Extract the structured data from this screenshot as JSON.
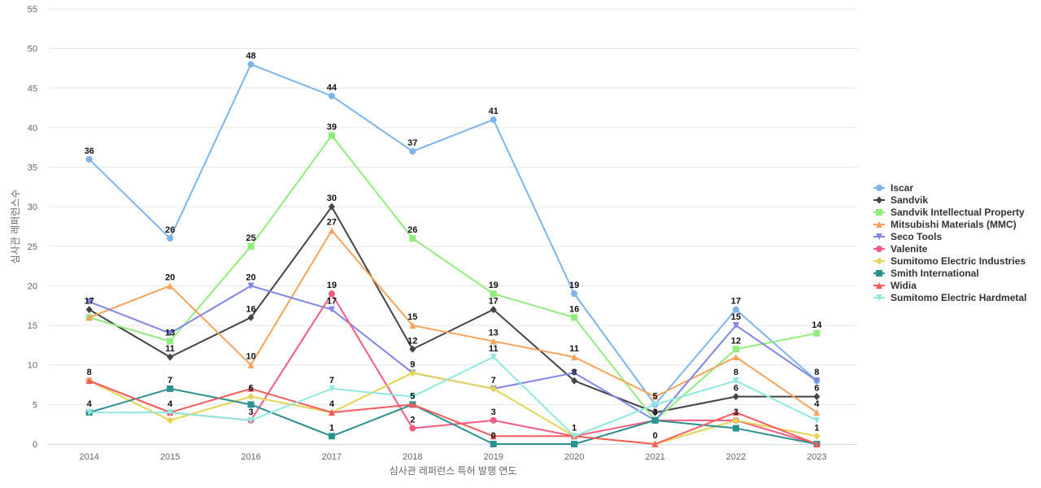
{
  "chart_data": {
    "type": "line",
    "xlabel": "심사관 레퍼런스 특허 발행 연도",
    "ylabel": "심사관 레퍼런스수",
    "x": [
      "2014",
      "2015",
      "2016",
      "2017",
      "2018",
      "2019",
      "2020",
      "2021",
      "2022",
      "2023"
    ],
    "ylim": [
      0,
      55
    ],
    "yticks": [
      "0",
      "5",
      "10",
      "15",
      "20",
      "25",
      "30",
      "35",
      "40",
      "45",
      "50",
      "55"
    ],
    "grid": true,
    "legend": "right",
    "series": [
      {
        "name": "Iscar",
        "color": "#7cb5ec",
        "marker": "circle",
        "values": [
          36,
          26,
          48,
          44,
          37,
          41,
          19,
          5,
          17,
          8
        ],
        "labels": [
          "36",
          "26",
          "48",
          "44",
          "37",
          "41",
          "19",
          "5",
          "17",
          "8"
        ]
      },
      {
        "name": "Sandvik",
        "color": "#434348",
        "marker": "diamond",
        "values": [
          17,
          11,
          16,
          30,
          12,
          17,
          8,
          4,
          6,
          6
        ],
        "labels": [
          "17",
          "11",
          "16",
          "30",
          "12",
          "17",
          "8",
          "",
          "6",
          "6"
        ]
      },
      {
        "name": "Sandvik Intellectual Property",
        "color": "#90ed7d",
        "marker": "square",
        "values": [
          16,
          13,
          25,
          39,
          26,
          19,
          16,
          3,
          12,
          14
        ],
        "labels": [
          "",
          "13",
          "25",
          "39",
          "26",
          "19",
          "16",
          "3",
          "12",
          "14"
        ]
      },
      {
        "name": "Mitsubishi Materials (MMC)",
        "color": "#f7a35c",
        "marker": "triangle",
        "values": [
          16,
          20,
          10,
          27,
          15,
          13,
          11,
          6,
          11,
          4
        ],
        "labels": [
          "",
          "20",
          "10",
          "27",
          "15",
          "13",
          "11",
          "",
          "",
          "4"
        ]
      },
      {
        "name": "Seco Tools",
        "color": "#8085e9",
        "marker": "triangle-down",
        "values": [
          18,
          14,
          20,
          17,
          9,
          7,
          9,
          3,
          15,
          8
        ],
        "labels": [
          "",
          "",
          "20",
          "17",
          "9",
          "7",
          "",
          "",
          "15",
          ""
        ]
      },
      {
        "name": "Valenite",
        "color": "#f15c80",
        "marker": "circle",
        "values": [
          8,
          4,
          3,
          19,
          2,
          3,
          1,
          3,
          3,
          0
        ],
        "labels": [
          "8",
          "",
          "",
          "19",
          "2",
          "3",
          "",
          "",
          "",
          ""
        ]
      },
      {
        "name": "Sumitomo Electric Industries",
        "color": "#e4d354",
        "marker": "diamond",
        "values": [
          8,
          3,
          6,
          4,
          9,
          7,
          1,
          0,
          3,
          1
        ],
        "labels": [
          "",
          "",
          "6",
          "4",
          "",
          "",
          "",
          "",
          "3",
          "1"
        ]
      },
      {
        "name": "Smith International",
        "color": "#2b908f",
        "marker": "square",
        "values": [
          4,
          7,
          5,
          1,
          5,
          0,
          0,
          3,
          2,
          0
        ],
        "labels": [
          "4",
          "7",
          "",
          "1",
          "5",
          "0",
          "",
          "",
          "",
          ""
        ]
      },
      {
        "name": "Widia",
        "color": "#f45b5b",
        "marker": "triangle",
        "values": [
          8,
          4,
          7,
          4,
          5,
          1,
          1,
          0,
          4,
          0
        ],
        "labels": [
          "",
          "4",
          "",
          "",
          "",
          "",
          "",
          "0",
          "",
          ""
        ]
      },
      {
        "name": "Sumitomo Electric Hardmetal",
        "color": "#91e8e1",
        "marker": "triangle-down",
        "values": [
          4,
          4,
          3,
          7,
          6,
          11,
          1,
          5,
          8,
          3
        ],
        "labels": [
          "",
          "",
          "3",
          "7",
          "",
          "11",
          "1",
          "",
          "8",
          ""
        ]
      }
    ]
  }
}
